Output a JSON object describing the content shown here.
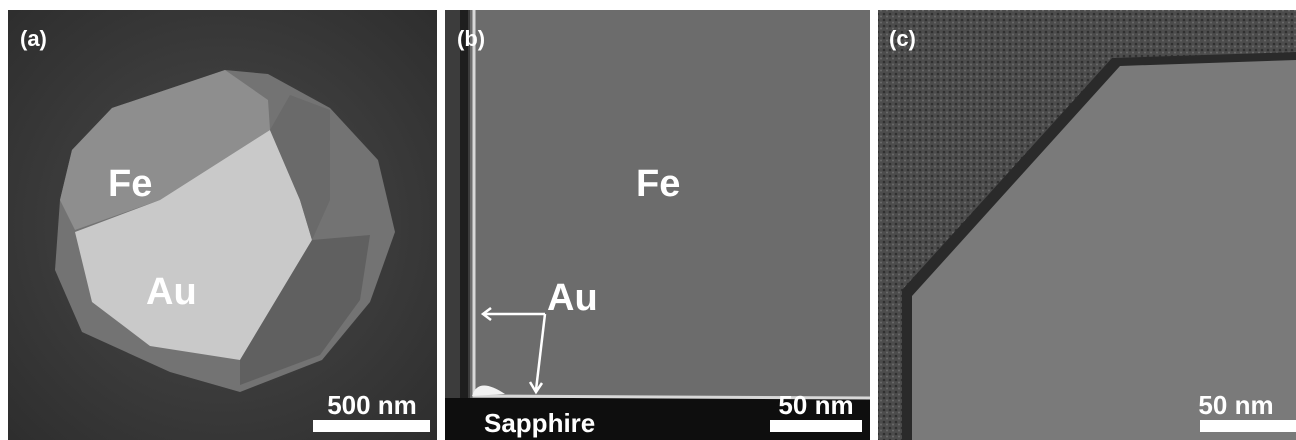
{
  "panels": [
    {
      "label": "(a)",
      "annotations": [
        "Fe",
        "Au"
      ],
      "scale_bar": "500 nm"
    },
    {
      "label": "(b)",
      "annotations": [
        "Fe",
        "Au",
        "Sapphire"
      ],
      "scale_bar": "50 nm"
    },
    {
      "label": "(c)",
      "scale_bar": "50 nm"
    }
  ]
}
